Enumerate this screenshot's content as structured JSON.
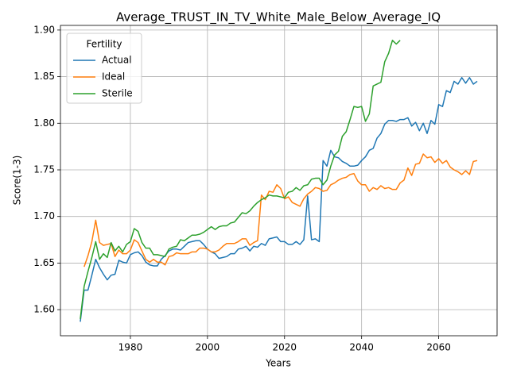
{
  "chart_data": {
    "type": "line",
    "title": "Average_TRUST_IN_TV_White_Male_Below_Average_IQ",
    "x_label": "Years",
    "y_label": "Score(1-3)",
    "x": [
      1967,
      1968,
      1969,
      1970,
      1971,
      1972,
      1973,
      1974,
      1975,
      1976,
      1977,
      1978,
      1979,
      1980,
      1981,
      1982,
      1983,
      1984,
      1985,
      1986,
      1987,
      1988,
      1989,
      1990,
      1991,
      1992,
      1993,
      1994,
      1995,
      1996,
      1997,
      1998,
      1999,
      2000,
      2001,
      2002,
      2003,
      2004,
      2005,
      2006,
      2007,
      2008,
      2009,
      2010,
      2011,
      2012,
      2013,
      2014,
      2015,
      2016,
      2017,
      2018,
      2019,
      2020,
      2021,
      2022,
      2023,
      2024,
      2025,
      2026,
      2027,
      2028,
      2029,
      2030,
      2031,
      2032,
      2033,
      2034,
      2035,
      2036,
      2037,
      2038,
      2039,
      2040,
      2041,
      2042,
      2043,
      2044,
      2045,
      2046,
      2047,
      2048,
      2049,
      2050,
      2051,
      2052,
      2053,
      2054,
      2055,
      2056,
      2057,
      2058,
      2059,
      2060,
      2061,
      2062,
      2063,
      2064,
      2065,
      2066,
      2067,
      2068,
      2069,
      2070
    ],
    "series": [
      {
        "name": "Actual",
        "color": "#1f77b4",
        "values": [
          1.587,
          1.621,
          1.621,
          1.637,
          1.654,
          1.645,
          1.638,
          1.632,
          1.637,
          1.638,
          1.653,
          1.651,
          1.65,
          1.659,
          1.661,
          1.662,
          1.658,
          1.651,
          1.648,
          1.647,
          1.647,
          1.654,
          1.658,
          1.663,
          1.665,
          1.665,
          1.664,
          1.668,
          1.672,
          1.673,
          1.674,
          1.674,
          1.67,
          1.665,
          1.662,
          1.66,
          1.655,
          1.656,
          1.657,
          1.66,
          1.66,
          1.665,
          1.666,
          1.668,
          1.663,
          1.668,
          1.667,
          1.671,
          1.669,
          1.676,
          1.677,
          1.678,
          1.673,
          1.673,
          1.67,
          1.67,
          1.673,
          1.67,
          1.675,
          1.722,
          1.675,
          1.676,
          1.673,
          1.76,
          1.754,
          1.771,
          1.764,
          1.763,
          1.759,
          1.757,
          1.754,
          1.754,
          1.755,
          1.76,
          1.764,
          1.771,
          1.773,
          1.784,
          1.789,
          1.799,
          1.803,
          1.803,
          1.802,
          1.804,
          1.804,
          1.806,
          1.797,
          1.801,
          1.792,
          1.8,
          1.789,
          1.803,
          1.799,
          1.82,
          1.818,
          1.835,
          1.833,
          1.845,
          1.842,
          1.849,
          1.843,
          1.849,
          1.842,
          1.845
        ]
      },
      {
        "name": "Ideal",
        "color": "#ff7f0e",
        "values": [
          null,
          1.646,
          1.658,
          1.673,
          1.696,
          1.672,
          1.669,
          1.67,
          1.671,
          1.657,
          1.664,
          1.66,
          1.66,
          1.664,
          1.675,
          1.672,
          1.663,
          1.654,
          1.651,
          1.654,
          1.651,
          1.651,
          1.648,
          1.657,
          1.658,
          1.661,
          1.66,
          1.66,
          1.66,
          1.662,
          1.662,
          1.666,
          1.666,
          1.665,
          1.662,
          1.662,
          1.664,
          1.668,
          1.671,
          1.671,
          1.671,
          1.673,
          1.676,
          1.676,
          1.669,
          1.672,
          1.674,
          1.723,
          1.718,
          1.727,
          1.726,
          1.734,
          1.73,
          1.719,
          1.721,
          1.715,
          1.713,
          1.711,
          1.719,
          1.724,
          1.727,
          1.731,
          1.73,
          1.727,
          1.728,
          1.734,
          1.736,
          1.739,
          1.741,
          1.742,
          1.745,
          1.746,
          1.738,
          1.734,
          1.734,
          1.727,
          1.731,
          1.729,
          1.733,
          1.73,
          1.731,
          1.729,
          1.729,
          1.736,
          1.739,
          1.752,
          1.744,
          1.756,
          1.757,
          1.767,
          1.763,
          1.764,
          1.758,
          1.762,
          1.757,
          1.76,
          1.753,
          1.75,
          1.748,
          1.745,
          1.749,
          1.745,
          1.759,
          1.76
        ]
      },
      {
        "name": "Sterile",
        "color": "#2ca02c",
        "values": [
          1.59,
          1.625,
          1.641,
          1.656,
          1.673,
          1.654,
          1.66,
          1.656,
          1.672,
          1.663,
          1.668,
          1.662,
          1.67,
          1.673,
          1.687,
          1.684,
          1.672,
          1.666,
          1.666,
          1.659,
          1.659,
          1.658,
          1.657,
          1.665,
          1.667,
          1.668,
          1.675,
          1.674,
          1.677,
          1.68,
          1.68,
          1.681,
          1.683,
          1.686,
          1.689,
          1.686,
          1.689,
          1.69,
          1.69,
          1.693,
          1.694,
          1.699,
          1.704,
          1.703,
          1.706,
          1.711,
          1.715,
          1.718,
          1.72,
          1.723,
          1.722,
          1.722,
          1.721,
          1.72,
          1.726,
          1.727,
          1.731,
          1.728,
          1.733,
          1.734,
          1.74,
          1.741,
          1.741,
          1.734,
          1.739,
          1.754,
          1.766,
          1.77,
          1.786,
          1.791,
          1.804,
          1.818,
          1.817,
          1.818,
          1.802,
          1.81,
          1.84,
          1.842,
          1.844,
          1.866,
          1.875,
          1.889,
          1.885,
          1.889,
          null,
          null,
          null,
          null,
          null,
          null,
          null,
          null,
          null,
          null,
          null,
          null,
          null,
          null,
          null,
          null,
          null,
          null,
          null,
          null
        ]
      }
    ],
    "xlim": [
      1961.85,
      2075.15
    ],
    "xticks": [
      1980,
      2000,
      2020,
      2040,
      2060
    ],
    "ylim": [
      1.572,
      1.905
    ],
    "yticks": [
      {
        "value": 1.6,
        "label": "1.60"
      },
      {
        "value": 1.65,
        "label": "1.65"
      },
      {
        "value": 1.7,
        "label": "1.70"
      },
      {
        "value": 1.75,
        "label": "1.75"
      },
      {
        "value": 1.8,
        "label": "1.80"
      },
      {
        "value": 1.85,
        "label": "1.85"
      },
      {
        "value": 1.9,
        "label": "1.90"
      }
    ],
    "grid": true,
    "legend_title": "Fertility",
    "legend_loc": "upper left"
  }
}
